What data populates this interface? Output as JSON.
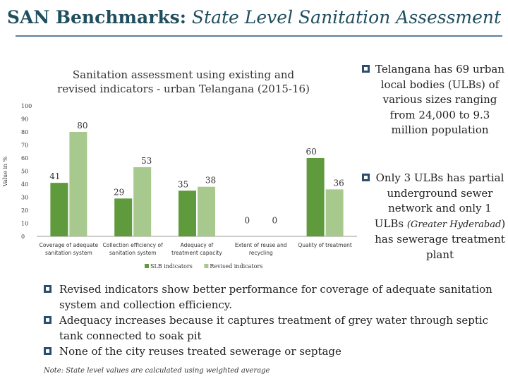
{
  "slide": {
    "title_bold": "SAN Benchmarks:",
    "title_italic": "State Level Sanitation Assessment"
  },
  "chart_data": {
    "type": "bar",
    "title_line1": "Sanitation assessment using existing and",
    "title_line2": "revised indicators  - urban Telangana (2015-16)",
    "ylabel": "Value in %",
    "ylim": [
      0,
      100
    ],
    "yticks": [
      0,
      10,
      20,
      30,
      40,
      50,
      60,
      70,
      80,
      90,
      100
    ],
    "categories": [
      [
        "Coverage of adequate",
        "sanitation system"
      ],
      [
        "Collection efficiency of",
        "sanitation system"
      ],
      [
        "Adequacy of",
        "treatment capacity"
      ],
      [
        "Extent of reuse and",
        "recycling"
      ],
      [
        "Quality of treatment"
      ]
    ],
    "series": [
      {
        "name": "SLB indicators",
        "color": "#5f9a3c",
        "values": [
          41,
          29,
          35,
          0,
          60
        ]
      },
      {
        "name": "Revised indicators",
        "color": "#a8c98d",
        "values": [
          80,
          53,
          38,
          0,
          36
        ]
      }
    ],
    "legend_position": "bottom"
  },
  "bullets": {
    "b1": "Telangana has 69 urban local bodies (ULBs) of various sizes ranging from 24,000 to 9.3 million population",
    "b2_pre": "Only 3 ULBs has partial underground sewer network and only 1 ULBs ",
    "b2_italic": "(Greater Hyderabad",
    "b2_post": ") has sewerage treatment plant",
    "b3": "Revised indicators show better performance for coverage of adequate sanitation system and collection efficiency.",
    "b4": "Adequacy increases because it captures treatment of grey water through septic tank connected to soak pit",
    "b5": "None of the city reuses treated sewerage or septage"
  },
  "note": "Note: State level values are calculated using weighted average"
}
